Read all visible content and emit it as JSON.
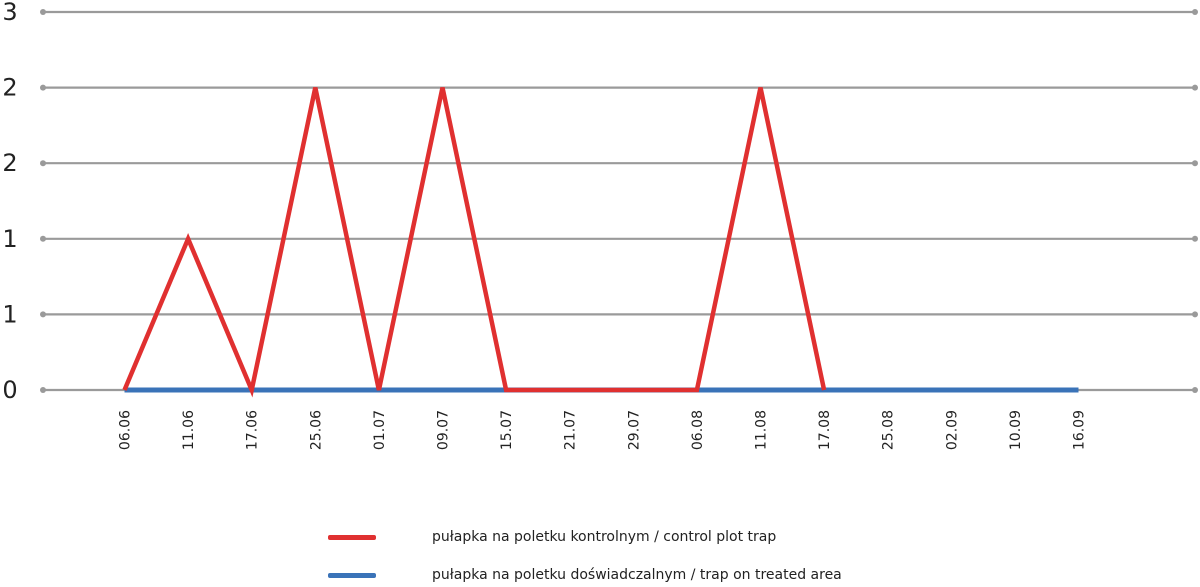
{
  "chart_data": {
    "type": "line",
    "categories": [
      "06.06",
      "11.06",
      "17.06",
      "25.06",
      "01.07",
      "09.07",
      "15.07",
      "21.07",
      "29.07",
      "06.08",
      "11.08",
      "17.08",
      "25.08",
      "02.09",
      "10.09",
      "16.09"
    ],
    "y_tick_labels": [
      "0",
      "1",
      "1",
      "2",
      "2",
      "3"
    ],
    "ylim": [
      0,
      2.5
    ],
    "grid": true,
    "legend_position": "bottom",
    "series": [
      {
        "name": "pułapka na poletku kontrolnym / control plot trap",
        "color": "#e03030",
        "values": [
          0,
          1,
          0,
          2,
          0,
          2,
          0,
          0,
          0,
          0,
          2,
          0,
          null,
          null,
          null,
          null
        ]
      },
      {
        "name": "pułapka na poletku doświadczalnym / trap on treated area",
        "color": "#3a73b8",
        "values": [
          0,
          0,
          0,
          0,
          0,
          0,
          0,
          0,
          0,
          0,
          0,
          0,
          0,
          0,
          0,
          0
        ]
      }
    ]
  }
}
